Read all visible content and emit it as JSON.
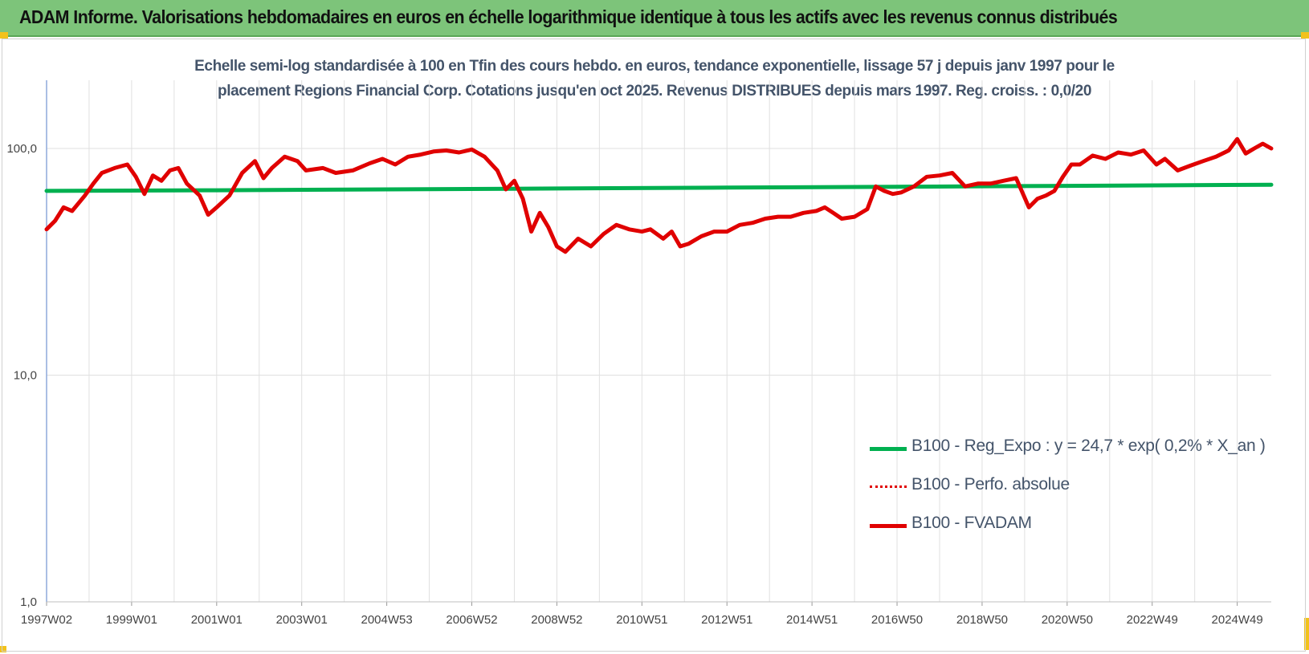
{
  "header": {
    "title": "ADAM Informe. Valorisations hebdomadaires en euros en échelle logarithmique identique à tous les actifs avec les revenus connus distribués"
  },
  "colors": {
    "banner": "#7dc47a",
    "accent_corner": "#f2c21b",
    "reg": "#00b050",
    "perf": "#e00000",
    "fvadam": "#e00000",
    "grid": "#e0e0e0",
    "axis": "#8ea9db"
  },
  "chart_data": {
    "type": "line",
    "title_line1": "Echelle semi-log standardisée à 100 en Tfin des cours hebdo. en euros, tendance exponentielle, lissage 57 j depuis janv 1997 pour le",
    "title_line2": "placement Regions Financial Corp. Cotations jusqu'en oct 2025. Revenus DISTRIBUES depuis mars 1997. Reg. croiss. : 0,0/20",
    "y_scale": "log",
    "ylim": [
      1,
      200
    ],
    "y_ticks": [
      {
        "value": 1,
        "label": "1,0"
      },
      {
        "value": 10,
        "label": "10,0"
      },
      {
        "value": 100,
        "label": "100,0"
      }
    ],
    "xlim": [
      1997.0,
      2025.8
    ],
    "x_ticks": [
      {
        "x": 1997.0,
        "label": "1997W02"
      },
      {
        "x": 1999.0,
        "label": "1999W01"
      },
      {
        "x": 2001.0,
        "label": "2001W01"
      },
      {
        "x": 2003.0,
        "label": "2003W01"
      },
      {
        "x": 2005.0,
        "label": "2004W53"
      },
      {
        "x": 2007.0,
        "label": "2006W52"
      },
      {
        "x": 2009.0,
        "label": "2008W52"
      },
      {
        "x": 2011.0,
        "label": "2010W51"
      },
      {
        "x": 2013.0,
        "label": "2012W51"
      },
      {
        "x": 2015.0,
        "label": "2014W51"
      },
      {
        "x": 2017.0,
        "label": "2016W50"
      },
      {
        "x": 2019.0,
        "label": "2018W50"
      },
      {
        "x": 2021.0,
        "label": "2020W50"
      },
      {
        "x": 2023.0,
        "label": "2022W49"
      },
      {
        "x": 2025.0,
        "label": "2024W49"
      }
    ],
    "grid": true,
    "legend_position": "bottom-right",
    "series": [
      {
        "name": "B100 - Reg_Expo : y = 24,7 * exp( 0,2% *  X_an )",
        "style": "solid",
        "color": "#00b050",
        "x": [
          1997.0,
          2001.0,
          2005.0,
          2009.0,
          2013.0,
          2017.0,
          2021.0,
          2025.8
        ],
        "y": [
          65.0,
          65.4,
          66.0,
          66.6,
          67.2,
          67.8,
          68.4,
          69.2
        ]
      },
      {
        "name": "B100 - Perfo. absolue",
        "style": "dotted",
        "color": "#e00000",
        "x": [],
        "y": []
      },
      {
        "name": "B100 - FVADAM",
        "style": "solid",
        "color": "#e00000",
        "x": [
          1997.0,
          1997.2,
          1997.4,
          1997.6,
          1997.9,
          1998.1,
          1998.3,
          1998.6,
          1998.9,
          1999.1,
          1999.3,
          1999.5,
          1999.7,
          1999.9,
          2000.1,
          2000.3,
          2000.6,
          2000.8,
          2001.0,
          2001.3,
          2001.6,
          2001.9,
          2002.1,
          2002.3,
          2002.6,
          2002.9,
          2003.1,
          2003.5,
          2003.8,
          2004.2,
          2004.6,
          2004.9,
          2005.2,
          2005.5,
          2005.8,
          2006.1,
          2006.4,
          2006.7,
          2007.0,
          2007.3,
          2007.6,
          2007.8,
          2008.0,
          2008.2,
          2008.4,
          2008.6,
          2008.8,
          2009.0,
          2009.2,
          2009.5,
          2009.8,
          2010.1,
          2010.4,
          2010.7,
          2011.0,
          2011.2,
          2011.5,
          2011.7,
          2011.9,
          2012.1,
          2012.4,
          2012.7,
          2013.0,
          2013.3,
          2013.6,
          2013.9,
          2014.2,
          2014.5,
          2014.8,
          2015.1,
          2015.3,
          2015.5,
          2015.7,
          2016.0,
          2016.3,
          2016.5,
          2016.7,
          2016.9,
          2017.1,
          2017.4,
          2017.7,
          2018.0,
          2018.3,
          2018.6,
          2018.9,
          2019.2,
          2019.5,
          2019.8,
          2020.1,
          2020.3,
          2020.5,
          2020.7,
          2020.9,
          2021.1,
          2021.3,
          2021.6,
          2021.9,
          2022.2,
          2022.5,
          2022.8,
          2023.1,
          2023.3,
          2023.6,
          2023.9,
          2024.2,
          2024.5,
          2024.8,
          2025.0,
          2025.2,
          2025.4,
          2025.6,
          2025.8
        ],
        "y": [
          44,
          48,
          55,
          53,
          62,
          70,
          78,
          82,
          85,
          75,
          63,
          76,
          72,
          80,
          82,
          70,
          62,
          51,
          55,
          62,
          78,
          88,
          74,
          82,
          92,
          88,
          80,
          82,
          78,
          80,
          86,
          90,
          85,
          92,
          94,
          97,
          98,
          96,
          99,
          92,
          80,
          66,
          72,
          60,
          43,
          52,
          45,
          37,
          35,
          40,
          37,
          42,
          46,
          44,
          43,
          44,
          40,
          43,
          37,
          38,
          41,
          43,
          43,
          46,
          47,
          49,
          50,
          50,
          52,
          53,
          55,
          52,
          49,
          50,
          54,
          68,
          65,
          63,
          64,
          68,
          75,
          76,
          78,
          68,
          70,
          70,
          72,
          74,
          55,
          60,
          62,
          65,
          75,
          85,
          85,
          93,
          90,
          96,
          94,
          98,
          85,
          90,
          80,
          84,
          88,
          92,
          98,
          110,
          95,
          100,
          105,
          100
        ]
      }
    ]
  }
}
